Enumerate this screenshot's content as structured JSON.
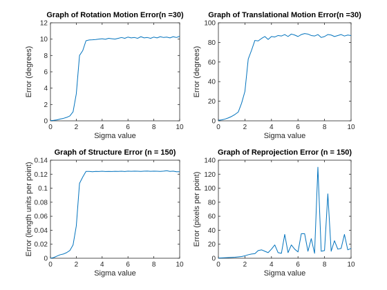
{
  "colors": {
    "line": "#0072bd",
    "axis": "#262626",
    "background": "#ffffff"
  },
  "chart_data": [
    {
      "type": "line",
      "title": "Graph of Rotation Motion Error(n =30)",
      "xlabel": "Sigma value",
      "ylabel": "Error (degrees)",
      "xlim": [
        0,
        10
      ],
      "ylim": [
        0,
        12
      ],
      "xticks": [
        0,
        2,
        4,
        6,
        8,
        10
      ],
      "yticks": [
        0,
        2,
        4,
        6,
        8,
        10,
        12
      ],
      "grid": false,
      "series": [
        {
          "x": [
            0,
            0.25,
            0.5,
            0.75,
            1,
            1.25,
            1.5,
            1.75,
            2,
            2.25,
            2.5,
            2.75,
            3,
            3.25,
            3.5,
            3.75,
            4,
            4.25,
            4.5,
            4.75,
            5,
            5.25,
            5.5,
            5.75,
            6,
            6.25,
            6.5,
            6.75,
            7,
            7.25,
            7.5,
            7.75,
            8,
            8.25,
            8.5,
            8.75,
            9,
            9.25,
            9.5,
            9.75,
            10
          ],
          "values": [
            0.02,
            0.06,
            0.12,
            0.22,
            0.3,
            0.42,
            0.6,
            1.1,
            3.3,
            8.0,
            8.6,
            9.8,
            9.9,
            9.92,
            9.95,
            10.0,
            10.05,
            9.98,
            10.1,
            10.05,
            10.0,
            10.1,
            10.2,
            10.1,
            10.25,
            10.15,
            10.2,
            10.1,
            10.3,
            10.15,
            10.2,
            10.1,
            10.25,
            10.15,
            10.3,
            10.2,
            10.25,
            10.15,
            10.3,
            10.2,
            10.35
          ]
        }
      ]
    },
    {
      "type": "line",
      "title": "Graph of Translational Motion Error(n =30)",
      "xlabel": "Sigma value",
      "ylabel": "Error (degrees)",
      "xlim": [
        0,
        10
      ],
      "ylim": [
        0,
        100
      ],
      "xticks": [
        0,
        2,
        4,
        6,
        8,
        10
      ],
      "yticks": [
        0,
        20,
        40,
        60,
        80,
        100
      ],
      "grid": false,
      "series": [
        {
          "x": [
            0,
            0.25,
            0.5,
            0.75,
            1,
            1.25,
            1.5,
            1.75,
            2,
            2.25,
            2.5,
            2.75,
            3,
            3.25,
            3.5,
            3.75,
            4,
            4.25,
            4.5,
            4.75,
            5,
            5.25,
            5.5,
            5.75,
            6,
            6.25,
            6.5,
            6.75,
            7,
            7.25,
            7.5,
            7.75,
            8,
            8.25,
            8.5,
            8.75,
            9,
            9.25,
            9.5,
            9.75,
            10
          ],
          "values": [
            0.5,
            1.0,
            1.8,
            3.0,
            4.5,
            6.5,
            9.0,
            18.0,
            30.0,
            63.0,
            72.0,
            82.0,
            81.5,
            84.0,
            86.0,
            83.0,
            86.0,
            85.5,
            87.0,
            86.5,
            88.0,
            86.0,
            88.5,
            87.5,
            86.0,
            88.0,
            89.0,
            88.5,
            87.0,
            86.5,
            88.0,
            85.0,
            86.0,
            88.0,
            87.5,
            86.0,
            87.0,
            88.0,
            86.5,
            87.5,
            87.0
          ]
        }
      ]
    },
    {
      "type": "line",
      "title": "Graph of Structure Error (n = 150)",
      "xlabel": "Sigma value",
      "ylabel": "Error (length units per point)",
      "xlim": [
        0,
        10
      ],
      "ylim": [
        0,
        0.14
      ],
      "xticks": [
        0,
        2,
        4,
        6,
        8,
        10
      ],
      "yticks": [
        0,
        0.02,
        0.04,
        0.06,
        0.08,
        0.1,
        0.12,
        0.14
      ],
      "grid": false,
      "series": [
        {
          "x": [
            0,
            0.25,
            0.5,
            0.75,
            1,
            1.25,
            1.5,
            1.75,
            2,
            2.25,
            2.5,
            2.75,
            3,
            3.25,
            3.5,
            3.75,
            4,
            4.25,
            4.5,
            4.75,
            5,
            5.25,
            5.5,
            5.75,
            6,
            6.25,
            6.5,
            6.75,
            7,
            7.25,
            7.5,
            7.75,
            8,
            8.25,
            8.5,
            8.75,
            9,
            9.25,
            9.5,
            9.75,
            10
          ],
          "values": [
            0.0,
            0.001,
            0.003,
            0.005,
            0.006,
            0.008,
            0.011,
            0.019,
            0.046,
            0.107,
            0.116,
            0.124,
            0.124,
            0.1235,
            0.124,
            0.1238,
            0.1242,
            0.1238,
            0.124,
            0.1239,
            0.1241,
            0.124,
            0.1242,
            0.1239,
            0.1243,
            0.1241,
            0.1244,
            0.1242,
            0.124,
            0.1243,
            0.1245,
            0.1241,
            0.1244,
            0.1242,
            0.124,
            0.1243,
            0.125,
            0.124,
            0.1243,
            0.1235,
            0.1235
          ]
        }
      ]
    },
    {
      "type": "line",
      "title": "Graph of Reprojection Error (n = 150)",
      "xlabel": "Sigma value",
      "ylabel": "Error (pixels per point)",
      "xlim": [
        0,
        10
      ],
      "ylim": [
        0,
        140
      ],
      "xticks": [
        0,
        2,
        4,
        6,
        8,
        10
      ],
      "yticks": [
        0,
        20,
        40,
        60,
        80,
        100,
        120,
        140
      ],
      "grid": false,
      "series": [
        {
          "x": [
            0,
            0.25,
            0.5,
            0.75,
            1,
            1.25,
            1.5,
            1.75,
            2,
            2.25,
            2.5,
            2.75,
            3,
            3.25,
            3.5,
            3.75,
            4,
            4.25,
            4.5,
            4.75,
            5,
            5.25,
            5.5,
            5.75,
            6,
            6.25,
            6.5,
            6.75,
            7,
            7.25,
            7.5,
            7.75,
            8,
            8.25,
            8.5,
            8.75,
            9,
            9.25,
            9.5,
            9.75,
            10
          ],
          "values": [
            0.3,
            0.5,
            0.8,
            1.0,
            1.2,
            1.5,
            2.0,
            2.5,
            3.5,
            5.0,
            6.0,
            6.5,
            11.0,
            12.0,
            10.0,
            8.0,
            13.0,
            19.0,
            8.0,
            7.0,
            34.0,
            8.0,
            19.0,
            13.0,
            9.0,
            35.0,
            35.0,
            10.0,
            28.0,
            7.0,
            130.0,
            10.0,
            11.0,
            92.0,
            10.0,
            25.0,
            13.0,
            14.0,
            34.0,
            12.0,
            14.0
          ]
        }
      ]
    }
  ]
}
